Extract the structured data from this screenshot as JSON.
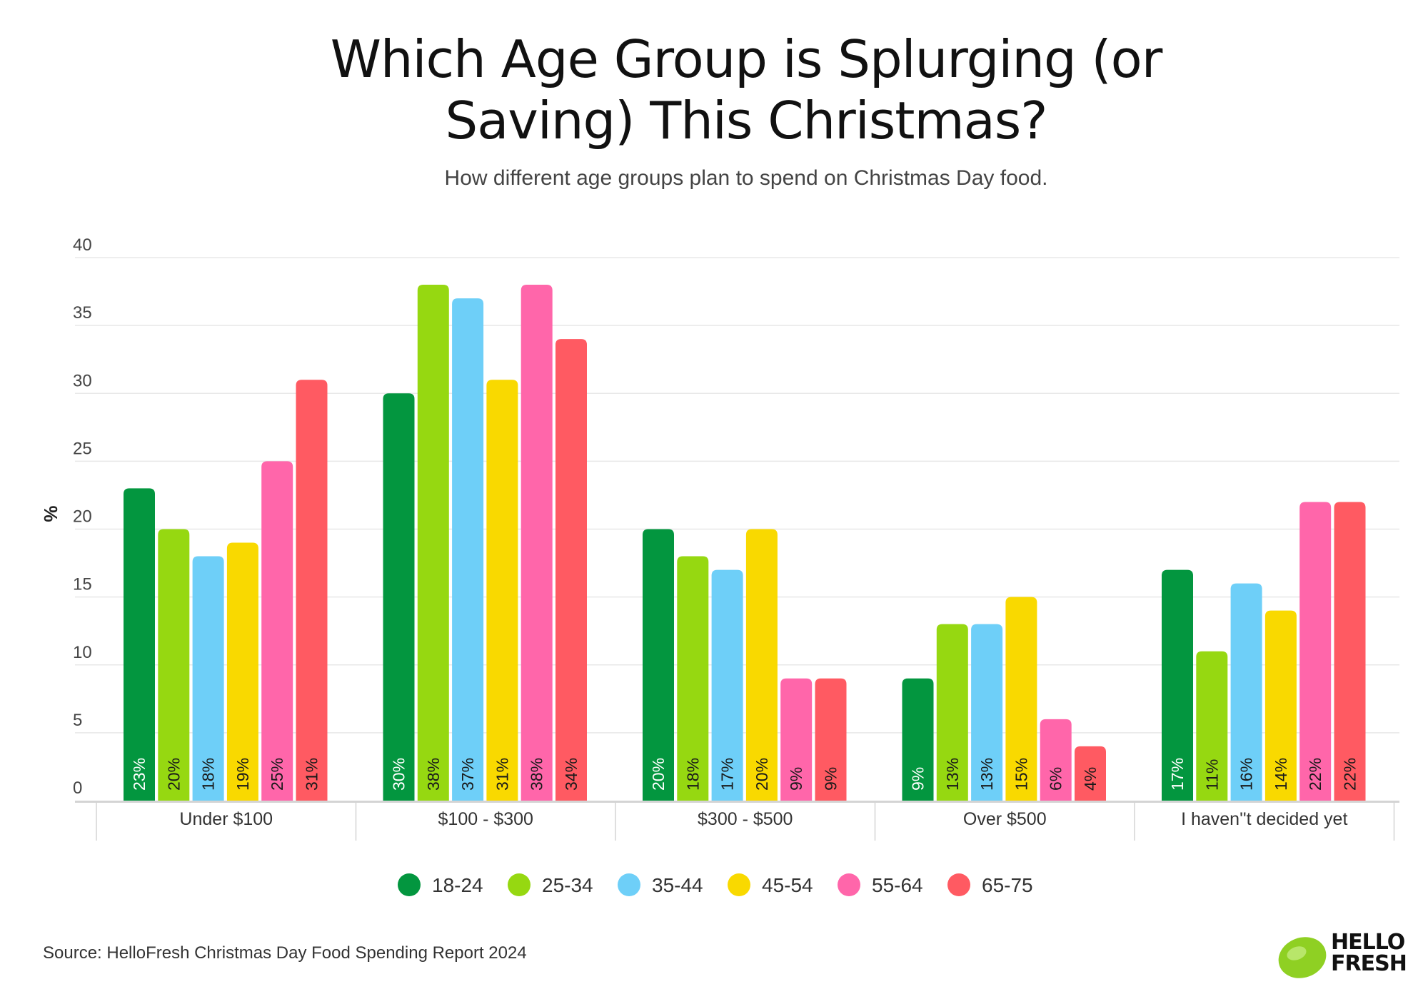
{
  "chart_data": {
    "type": "bar",
    "title_line1": "Which Age Group is Splurging (or",
    "title_line2": "Saving) This Christmas?",
    "subtitle": "How different age groups plan to spend on Christmas Day food.",
    "ylabel": "%",
    "ylim": [
      0,
      40
    ],
    "yticks": [
      0,
      5,
      10,
      15,
      20,
      25,
      30,
      35,
      40
    ],
    "grid": true,
    "legend_position": "bottom",
    "categories": [
      "Under $100",
      "$100 - $300",
      "$300 - $500",
      "Over $500",
      "I haven''t decided yet"
    ],
    "series": [
      {
        "name": "18-24",
        "color": "#03963F",
        "label_color": "#ffffff",
        "values": [
          23,
          30,
          20,
          9,
          17
        ],
        "labels": [
          "23%",
          "30%",
          "20%",
          "9%",
          "17%"
        ]
      },
      {
        "name": "25-34",
        "color": "#96D811",
        "label_color": "#1a1a1a",
        "values": [
          20,
          38,
          18,
          13,
          11
        ],
        "labels": [
          "20%",
          "38%",
          "18%",
          "13%",
          "11%"
        ]
      },
      {
        "name": "35-44",
        "color": "#6ECFF8",
        "label_color": "#1a1a1a",
        "values": [
          18,
          37,
          17,
          13,
          16
        ],
        "labels": [
          "18%",
          "37%",
          "17%",
          "13%",
          "16%"
        ]
      },
      {
        "name": "45-54",
        "color": "#F9D900",
        "label_color": "#1a1a1a",
        "values": [
          19,
          31,
          20,
          15,
          14
        ],
        "labels": [
          "19%",
          "31%",
          "20%",
          "15%",
          "14%"
        ]
      },
      {
        "name": "55-64",
        "color": "#FF66AA",
        "label_color": "#1a1a1a",
        "values": [
          25,
          38,
          9,
          6,
          22
        ],
        "labels": [
          "25%",
          "38%",
          "9%",
          "6%",
          "22%"
        ]
      },
      {
        "name": "65-75",
        "color": "#FF5A62",
        "label_color": "#1a1a1a",
        "values": [
          31,
          34,
          9,
          4,
          22
        ],
        "labels": [
          "31%",
          "34%",
          "9%",
          "4%",
          "22%"
        ]
      }
    ]
  },
  "footer": {
    "source": "Source: HelloFresh Christmas Day Food Spending Report 2024",
    "logo_line1": "HELLO",
    "logo_line2": "FRESH",
    "logo_color": "#8FD023"
  }
}
